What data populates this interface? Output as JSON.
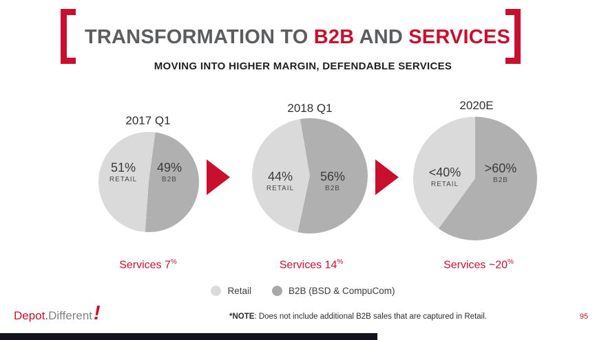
{
  "colors": {
    "accent_red": "#c8102e",
    "retail_gray": "#dadada",
    "b2b_gray": "#b0b0b0",
    "footer_bar": "#13131d"
  },
  "title": {
    "segments": [
      {
        "text": "TRANSFORMATION TO ",
        "color": "gray"
      },
      {
        "text": "B2B",
        "color": "red"
      },
      {
        "text": " AND ",
        "color": "gray"
      },
      {
        "text": "SERVICES",
        "color": "red"
      }
    ],
    "subtitle": "MOVING INTO HIGHER MARGIN, DEFENDABLE SERVICES"
  },
  "chart_data": [
    {
      "type": "pie",
      "title": "2017 Q1",
      "rotation_deg": 184,
      "slices": [
        {
          "label": "RETAIL",
          "value_label": "51%",
          "value": 51,
          "color": "#dadada"
        },
        {
          "label": "B2B",
          "value_label": "49%",
          "value": 49,
          "color": "#b0b0b0"
        }
      ],
      "services": {
        "text": "Services 7",
        "sup": "%"
      }
    },
    {
      "type": "pie",
      "title": "2018 Q1",
      "rotation_deg": 192,
      "slices": [
        {
          "label": "RETAIL",
          "value_label": "44%",
          "value": 44,
          "color": "#dadada"
        },
        {
          "label": "B2B",
          "value_label": "56%",
          "value": 56,
          "color": "#b0b0b0"
        }
      ],
      "services": {
        "text": "Services 14",
        "sup": "%"
      }
    },
    {
      "type": "pie",
      "title": "2020E",
      "rotation_deg": 216,
      "slices": [
        {
          "label": "RETAIL",
          "value_label": "<40%",
          "value": 40,
          "color": "#dadada"
        },
        {
          "label": "B2B",
          "value_label": ">60%",
          "value": 60,
          "color": "#b0b0b0"
        }
      ],
      "services": {
        "text": "Services ~20",
        "sup": "%"
      }
    }
  ],
  "legend": {
    "position": "bottom",
    "items": [
      {
        "label": "Retail",
        "color": "#dadada"
      },
      {
        "label": "B2B (BSD & CompuCom)",
        "color": "#a8a8a8"
      }
    ]
  },
  "footer": {
    "brand_primary": "Depot.",
    "brand_secondary": "Different",
    "brand_mark": "!",
    "note_bold": "*NOTE",
    "note_rest": ": Does not include additional B2B sales that are captured in Retail.",
    "page_number": "95"
  }
}
